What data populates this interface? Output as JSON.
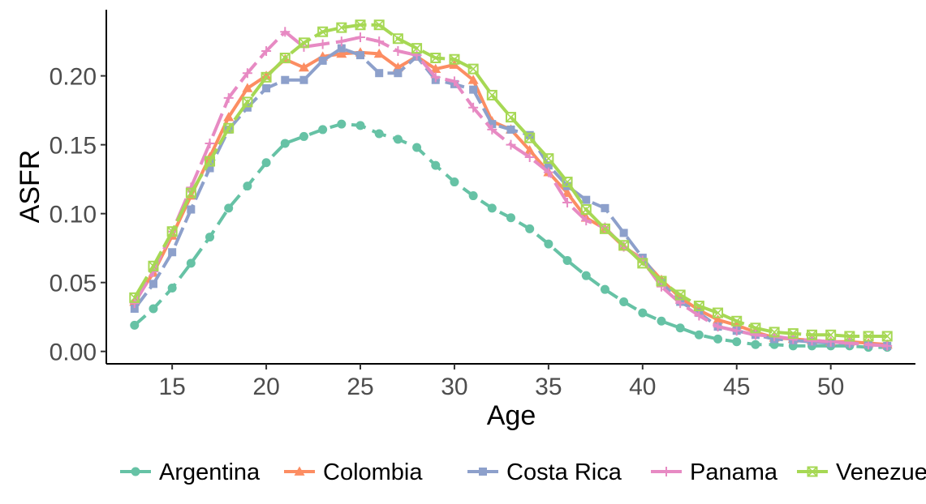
{
  "chart_data": {
    "type": "line",
    "xlabel": "Age",
    "ylabel": "ASFR",
    "xlim": [
      11.5,
      54.5
    ],
    "ylim": [
      -0.009,
      0.248
    ],
    "xticks": [
      15,
      20,
      25,
      30,
      35,
      40,
      45,
      50
    ],
    "xtick_labels": [
      "15",
      "20",
      "25",
      "30",
      "35",
      "40",
      "45",
      "50"
    ],
    "yticks": [
      0.0,
      0.05,
      0.1,
      0.15,
      0.2
    ],
    "ytick_labels": [
      "0.00",
      "0.05",
      "0.10",
      "0.15",
      "0.20"
    ],
    "grid": false,
    "legend_position": "bottom",
    "x": [
      13,
      14,
      15,
      16,
      17,
      18,
      19,
      20,
      21,
      22,
      23,
      24,
      25,
      26,
      27,
      28,
      29,
      30,
      31,
      32,
      33,
      34,
      35,
      36,
      37,
      38,
      39,
      40,
      41,
      42,
      43,
      44,
      45,
      46,
      47,
      48,
      49,
      50,
      51,
      52,
      53
    ],
    "series": [
      {
        "name": "Argentina",
        "color": "#66c2a5",
        "dash": "18,9",
        "marker": "circle",
        "values": [
          0.019,
          0.031,
          0.046,
          0.064,
          0.083,
          0.104,
          0.12,
          0.137,
          0.151,
          0.156,
          0.161,
          0.165,
          0.164,
          0.158,
          0.154,
          0.148,
          0.135,
          0.123,
          0.113,
          0.104,
          0.097,
          0.089,
          0.078,
          0.066,
          0.055,
          0.045,
          0.036,
          0.028,
          0.022,
          0.017,
          0.012,
          0.009,
          0.007,
          0.005,
          0.005,
          0.004,
          0.004,
          0.004,
          0.004,
          0.003,
          0.003
        ]
      },
      {
        "name": "Colombia",
        "color": "#fc8d62",
        "dash": "",
        "marker": "triangle",
        "values": [
          0.036,
          0.057,
          0.084,
          0.113,
          0.141,
          0.17,
          0.191,
          0.2,
          0.212,
          0.206,
          0.214,
          0.216,
          0.217,
          0.216,
          0.206,
          0.214,
          0.205,
          0.208,
          0.197,
          0.167,
          0.161,
          0.146,
          0.13,
          0.115,
          0.097,
          0.089,
          0.076,
          0.067,
          0.052,
          0.039,
          0.03,
          0.023,
          0.019,
          0.014,
          0.01,
          0.009,
          0.008,
          0.007,
          0.007,
          0.006,
          0.005
        ]
      },
      {
        "name": "Costa Rica",
        "color": "#8da0cb",
        "dash": "24,7",
        "marker": "square",
        "values": [
          0.031,
          0.049,
          0.072,
          0.103,
          0.133,
          0.161,
          0.177,
          0.191,
          0.197,
          0.197,
          0.211,
          0.22,
          0.215,
          0.202,
          0.202,
          0.214,
          0.197,
          0.194,
          0.19,
          0.165,
          0.161,
          0.157,
          0.135,
          0.12,
          0.11,
          0.104,
          0.086,
          0.068,
          0.05,
          0.036,
          0.028,
          0.018,
          0.015,
          0.012,
          0.009,
          0.008,
          0.007,
          0.006,
          0.006,
          0.005,
          0.004
        ]
      },
      {
        "name": "Panama",
        "color": "#e78ac3",
        "dash": "30,8",
        "marker": "plus",
        "values": [
          0.035,
          0.058,
          0.087,
          0.119,
          0.151,
          0.184,
          0.202,
          0.218,
          0.232,
          0.221,
          0.223,
          0.225,
          0.228,
          0.225,
          0.218,
          0.215,
          0.199,
          0.196,
          0.177,
          0.161,
          0.15,
          0.141,
          0.13,
          0.108,
          0.095,
          0.09,
          0.076,
          0.066,
          0.047,
          0.035,
          0.026,
          0.018,
          0.015,
          0.012,
          0.011,
          0.009,
          0.008,
          0.007,
          0.006,
          0.005,
          0.004
        ]
      },
      {
        "name": "Venezuela",
        "color": "#a6d854",
        "dash": "30,6",
        "marker": "boxx",
        "values": [
          0.039,
          0.062,
          0.087,
          0.115,
          0.138,
          0.162,
          0.181,
          0.199,
          0.213,
          0.224,
          0.232,
          0.235,
          0.237,
          0.237,
          0.227,
          0.22,
          0.213,
          0.212,
          0.205,
          0.186,
          0.17,
          0.155,
          0.14,
          0.123,
          0.103,
          0.089,
          0.077,
          0.064,
          0.051,
          0.041,
          0.033,
          0.028,
          0.022,
          0.017,
          0.014,
          0.013,
          0.012,
          0.012,
          0.011,
          0.011,
          0.011
        ]
      }
    ]
  }
}
